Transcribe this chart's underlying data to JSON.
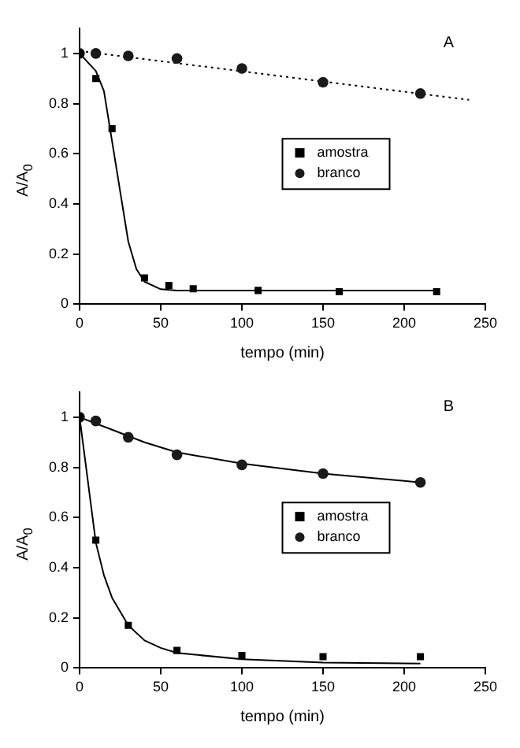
{
  "chart_data": [
    {
      "type": "scatter",
      "xlabel": "tempo (min)",
      "ylabel": "A/A$_{0}$",
      "annotations": [
        "A"
      ],
      "xlim": [
        0,
        250
      ],
      "xticks": [
        0,
        50,
        100,
        150,
        200,
        250
      ],
      "ylim": [
        0,
        1.1
      ],
      "yticks": [
        0,
        0.2,
        0.4,
        0.6,
        0.8,
        1.0
      ],
      "grid": false,
      "legend": "right",
      "series": [
        {
          "name": "amostra",
          "type": "scatter",
          "marker": "square",
          "color": "#000000",
          "x": [
            0,
            10,
            20,
            40,
            55,
            70,
            110,
            160,
            220
          ],
          "values": [
            1.0,
            0.9,
            0.7,
            0.105,
            0.075,
            0.062,
            0.055,
            0.05,
            0.05
          ]
        },
        {
          "name": "branco",
          "type": "scatter",
          "marker": "circle",
          "color": "#1a1a1a",
          "x": [
            0,
            10,
            30,
            60,
            100,
            150,
            210
          ],
          "values": [
            1.0,
            1.0,
            0.99,
            0.98,
            0.94,
            0.885,
            0.84
          ]
        },
        {
          "type": "line",
          "marker": "none",
          "line_style": "solid",
          "color": "#000000",
          "x": [
            0,
            10,
            15,
            20,
            25,
            30,
            35,
            40,
            50,
            60,
            100,
            220
          ],
          "values": [
            1.0,
            0.93,
            0.85,
            0.65,
            0.45,
            0.25,
            0.14,
            0.09,
            0.06,
            0.055,
            0.055,
            0.055
          ]
        },
        {
          "type": "line",
          "marker": "none",
          "line_style": "dotted",
          "color": "#000000",
          "x": [
            0,
            240
          ],
          "values": [
            1.01,
            0.815
          ]
        }
      ]
    },
    {
      "type": "scatter",
      "xlabel": "tempo (min)",
      "ylabel": "A/A$_{0}$",
      "annotations": [
        "B"
      ],
      "xlim": [
        0,
        250
      ],
      "xticks": [
        0,
        50,
        100,
        150,
        200,
        250
      ],
      "ylim": [
        0,
        1.1
      ],
      "yticks": [
        0,
        0.2,
        0.4,
        0.6,
        0.8,
        1.0
      ],
      "grid": false,
      "legend": "right",
      "series": [
        {
          "name": "amostra",
          "type": "scatter",
          "marker": "square",
          "color": "#000000",
          "x": [
            0,
            10,
            30,
            60,
            100,
            150,
            210
          ],
          "values": [
            1.0,
            0.51,
            0.17,
            0.07,
            0.05,
            0.045,
            0.045
          ]
        },
        {
          "name": "branco",
          "type": "scatter",
          "marker": "circle",
          "color": "#1a1a1a",
          "x": [
            0,
            10,
            30,
            60,
            100,
            150,
            210
          ],
          "values": [
            1.0,
            0.985,
            0.92,
            0.85,
            0.81,
            0.775,
            0.74
          ]
        },
        {
          "type": "line",
          "marker": "none",
          "line_style": "solid",
          "color": "#000000",
          "x": [
            0,
            5,
            10,
            15,
            20,
            30,
            40,
            50,
            60,
            100,
            150,
            210
          ],
          "values": [
            1.0,
            0.75,
            0.5,
            0.37,
            0.28,
            0.17,
            0.11,
            0.08,
            0.06,
            0.035,
            0.022,
            0.018
          ]
        },
        {
          "type": "line",
          "marker": "none",
          "line_style": "solid",
          "color": "#000000",
          "x": [
            0,
            20,
            40,
            60,
            100,
            150,
            210
          ],
          "values": [
            1.0,
            0.95,
            0.9,
            0.86,
            0.815,
            0.775,
            0.74
          ]
        }
      ]
    }
  ]
}
